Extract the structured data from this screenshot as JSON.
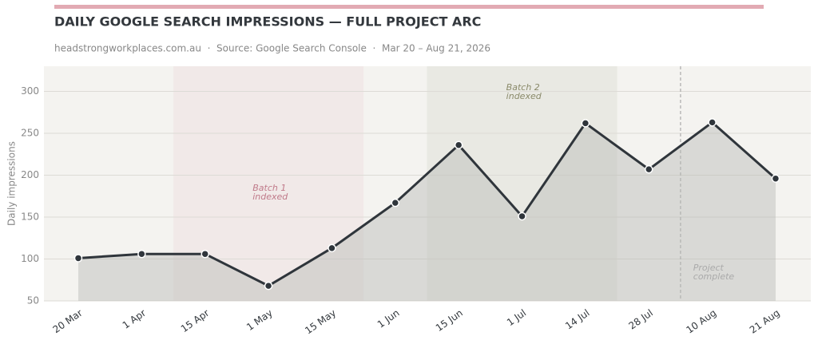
{
  "chart_data": {
    "type": "line",
    "title": "DAILY GOOGLE SEARCH IMPRESSIONS — FULL PROJECT ARC",
    "subtitle": "headstrongworkplaces.com.au  ·  Source: Google Search Console  ·  Mar 20 – Aug 21, 2026",
    "y_label": "Daily impressions",
    "categories": [
      "20 Mar",
      "1 Apr",
      "15 Apr",
      "1 May",
      "15 May",
      "1 Jun",
      "15 Jun",
      "1 Jul",
      "14 Jul",
      "28 Jul",
      "10 Aug",
      "21 Aug"
    ],
    "values": [
      101,
      106,
      106,
      68,
      113,
      167,
      236,
      151,
      262,
      207,
      263,
      196
    ],
    "color": "#2f353b",
    "ylim": [
      50,
      330
    ],
    "yticks": [
      50,
      100,
      150,
      200,
      250,
      300
    ],
    "grid": true,
    "annotations": [
      {
        "lines": [
          "Batch 1",
          "indexed"
        ],
        "color": "#c07a8a"
      },
      {
        "lines": [
          "Batch 2",
          "indexed"
        ],
        "color": "#8a8a6a"
      },
      {
        "lines": [
          "Project",
          "complete"
        ],
        "color": "#aaaaaa"
      }
    ]
  }
}
